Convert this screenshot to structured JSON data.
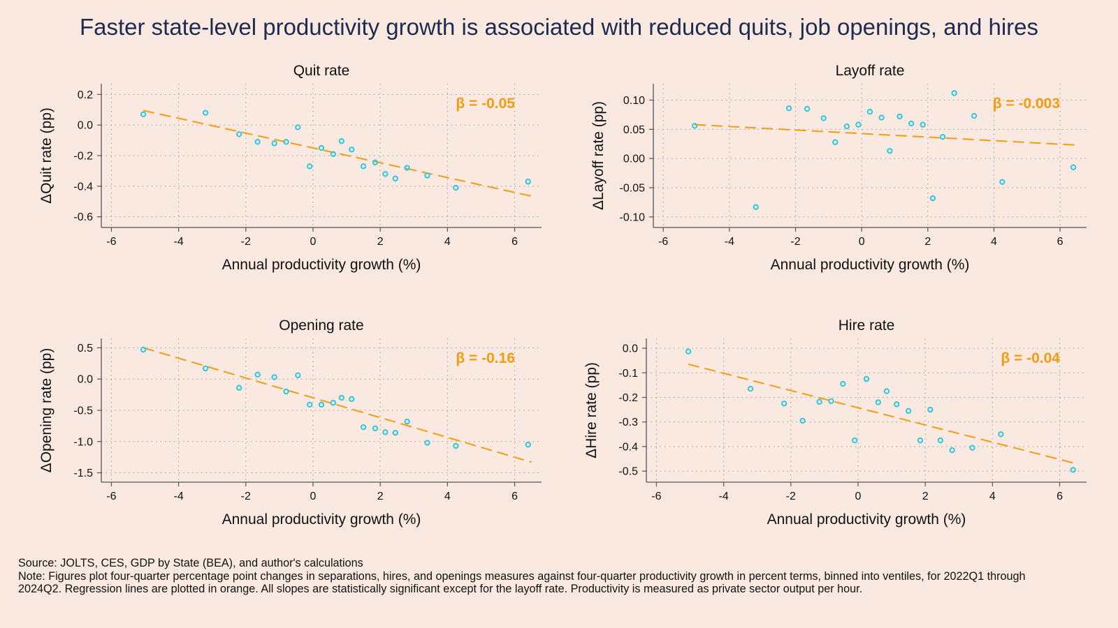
{
  "title": "Faster state-level productivity growth is associated with reduced quits, job openings, and hires",
  "footer": {
    "source": "Source: JOLTS, CES, GDP by State (BEA), and author's calculations",
    "note": "Note: Figures plot four-quarter percentage point changes in separations, hires, and openings measures against four-quarter productivity growth in percent terms, binned into ventiles, for 2022Q1 through 2024Q2. Regression lines are plotted in orange. All slopes are statistically significant except for the layoff rate. Productivity is measured as private sector output per hour."
  },
  "colors": {
    "background": "#f9e9e0",
    "points": "#2ec8e0",
    "regression": "#f39c12",
    "title": "#1d2b4f",
    "grid": "#9a9a9a"
  },
  "chart_data": [
    {
      "type": "scatter",
      "title": "Quit rate",
      "xlabel": "Annual productivity growth (%)",
      "ylabel": "ΔQuit rate (pp)",
      "xlim": [
        -6.3,
        6.8
      ],
      "ylim": [
        -0.67,
        0.27
      ],
      "xticks": [
        -6,
        -4,
        -2,
        0,
        2,
        4,
        6
      ],
      "yticks": [
        -0.6,
        -0.4,
        -0.2,
        0.0,
        0.2
      ],
      "ytick_labels": [
        "-0.6",
        "-0.4",
        "-0.2",
        "0.0",
        "0.2"
      ],
      "grid": true,
      "beta_label": "β = -0.05",
      "points": [
        {
          "x": -5.05,
          "y": 0.07
        },
        {
          "x": -3.2,
          "y": 0.08
        },
        {
          "x": -2.2,
          "y": -0.06
        },
        {
          "x": -1.65,
          "y": -0.11
        },
        {
          "x": -1.15,
          "y": -0.12
        },
        {
          "x": -0.8,
          "y": -0.11
        },
        {
          "x": -0.45,
          "y": -0.015
        },
        {
          "x": -0.1,
          "y": -0.27
        },
        {
          "x": 0.25,
          "y": -0.15
        },
        {
          "x": 0.6,
          "y": -0.19
        },
        {
          "x": 0.85,
          "y": -0.105
        },
        {
          "x": 1.15,
          "y": -0.16
        },
        {
          "x": 1.5,
          "y": -0.27
        },
        {
          "x": 1.85,
          "y": -0.245
        },
        {
          "x": 2.15,
          "y": -0.32
        },
        {
          "x": 2.45,
          "y": -0.35
        },
        {
          "x": 2.8,
          "y": -0.28
        },
        {
          "x": 3.4,
          "y": -0.33
        },
        {
          "x": 4.25,
          "y": -0.41
        },
        {
          "x": 6.4,
          "y": -0.37
        }
      ],
      "regression": {
        "x": [
          -5.05,
          6.5
        ],
        "y": [
          0.095,
          -0.465
        ]
      }
    },
    {
      "type": "scatter",
      "title": "Layoff rate",
      "xlabel": "Annual productivity growth (%)",
      "ylabel": "ΔLayoff rate (pp)",
      "xlim": [
        -6.3,
        6.8
      ],
      "ylim": [
        -0.118,
        0.128
      ],
      "xticks": [
        -6,
        -4,
        -2,
        0,
        2,
        4,
        6
      ],
      "yticks": [
        -0.1,
        -0.05,
        0.0,
        0.05,
        0.1
      ],
      "ytick_labels": [
        "-0.10",
        "-0.05",
        "0.00",
        "0.05",
        "0.10"
      ],
      "grid": true,
      "beta_label": "β = -0.003",
      "points": [
        {
          "x": -5.05,
          "y": 0.056
        },
        {
          "x": -3.2,
          "y": -0.083
        },
        {
          "x": -2.2,
          "y": 0.086
        },
        {
          "x": -1.65,
          "y": 0.085
        },
        {
          "x": -1.15,
          "y": 0.069
        },
        {
          "x": -0.8,
          "y": 0.028
        },
        {
          "x": -0.45,
          "y": 0.055
        },
        {
          "x": -0.1,
          "y": 0.058
        },
        {
          "x": 0.25,
          "y": 0.08
        },
        {
          "x": 0.6,
          "y": 0.07
        },
        {
          "x": 0.85,
          "y": 0.013
        },
        {
          "x": 1.15,
          "y": 0.072
        },
        {
          "x": 1.5,
          "y": 0.06
        },
        {
          "x": 1.85,
          "y": 0.058
        },
        {
          "x": 2.15,
          "y": -0.068
        },
        {
          "x": 2.45,
          "y": 0.037
        },
        {
          "x": 2.8,
          "y": 0.112
        },
        {
          "x": 3.4,
          "y": 0.073
        },
        {
          "x": 4.25,
          "y": -0.04
        },
        {
          "x": 6.4,
          "y": -0.015
        }
      ],
      "regression": {
        "x": [
          -5.05,
          6.5
        ],
        "y": [
          0.058,
          0.023
        ]
      }
    },
    {
      "type": "scatter",
      "title": "Opening rate",
      "xlabel": "Annual productivity growth (%)",
      "ylabel": "ΔOpening rate (pp)",
      "xlim": [
        -6.3,
        6.8
      ],
      "ylim": [
        -1.65,
        0.65
      ],
      "xticks": [
        -6,
        -4,
        -2,
        0,
        2,
        4,
        6
      ],
      "yticks": [
        -1.5,
        -1.0,
        -0.5,
        0.0,
        0.5
      ],
      "ytick_labels": [
        "-1.5",
        "-1.0",
        "-0.5",
        "0.0",
        "0.5"
      ],
      "grid": true,
      "beta_label": "β = -0.16",
      "points": [
        {
          "x": -5.05,
          "y": 0.47
        },
        {
          "x": -3.2,
          "y": 0.17
        },
        {
          "x": -2.2,
          "y": -0.14
        },
        {
          "x": -1.65,
          "y": 0.07
        },
        {
          "x": -1.15,
          "y": 0.03
        },
        {
          "x": -0.8,
          "y": -0.2
        },
        {
          "x": -0.45,
          "y": 0.06
        },
        {
          "x": -0.1,
          "y": -0.41
        },
        {
          "x": 0.25,
          "y": -0.41
        },
        {
          "x": 0.6,
          "y": -0.38
        },
        {
          "x": 0.85,
          "y": -0.3
        },
        {
          "x": 1.15,
          "y": -0.32
        },
        {
          "x": 1.5,
          "y": -0.77
        },
        {
          "x": 1.85,
          "y": -0.79
        },
        {
          "x": 2.15,
          "y": -0.85
        },
        {
          "x": 2.45,
          "y": -0.86
        },
        {
          "x": 2.8,
          "y": -0.68
        },
        {
          "x": 3.4,
          "y": -1.02
        },
        {
          "x": 4.25,
          "y": -1.07
        },
        {
          "x": 6.4,
          "y": -1.05
        }
      ],
      "regression": {
        "x": [
          -5.05,
          6.5
        ],
        "y": [
          0.5,
          -1.33
        ]
      }
    },
    {
      "type": "scatter",
      "title": "Hire rate",
      "xlabel": "Annual productivity growth (%)",
      "ylabel": "ΔHire rate (pp)",
      "xlim": [
        -6.3,
        6.8
      ],
      "ylim": [
        -0.545,
        0.04
      ],
      "xticks": [
        -6,
        -4,
        -2,
        0,
        2,
        4,
        6
      ],
      "yticks": [
        -0.5,
        -0.4,
        -0.3,
        -0.2,
        -0.1,
        0.0
      ],
      "ytick_labels": [
        "-0.5",
        "-0.4",
        "-0.3",
        "-0.2",
        "-0.1",
        "0.0"
      ],
      "grid": true,
      "beta_label": "β = -0.04",
      "points": [
        {
          "x": -5.05,
          "y": -0.013
        },
        {
          "x": -3.2,
          "y": -0.165
        },
        {
          "x": -2.2,
          "y": -0.225
        },
        {
          "x": -1.65,
          "y": -0.295
        },
        {
          "x": -1.15,
          "y": -0.218
        },
        {
          "x": -0.8,
          "y": -0.215
        },
        {
          "x": -0.45,
          "y": -0.145
        },
        {
          "x": -0.1,
          "y": -0.375
        },
        {
          "x": 0.25,
          "y": -0.125
        },
        {
          "x": 0.6,
          "y": -0.22
        },
        {
          "x": 0.85,
          "y": -0.175
        },
        {
          "x": 1.15,
          "y": -0.228
        },
        {
          "x": 1.5,
          "y": -0.255
        },
        {
          "x": 1.85,
          "y": -0.375
        },
        {
          "x": 2.15,
          "y": -0.25
        },
        {
          "x": 2.45,
          "y": -0.375
        },
        {
          "x": 2.8,
          "y": -0.415
        },
        {
          "x": 3.4,
          "y": -0.405
        },
        {
          "x": 4.25,
          "y": -0.35
        },
        {
          "x": 6.4,
          "y": -0.495
        }
      ],
      "regression": {
        "x": [
          -5.05,
          6.5
        ],
        "y": [
          -0.065,
          -0.47
        ]
      }
    }
  ]
}
